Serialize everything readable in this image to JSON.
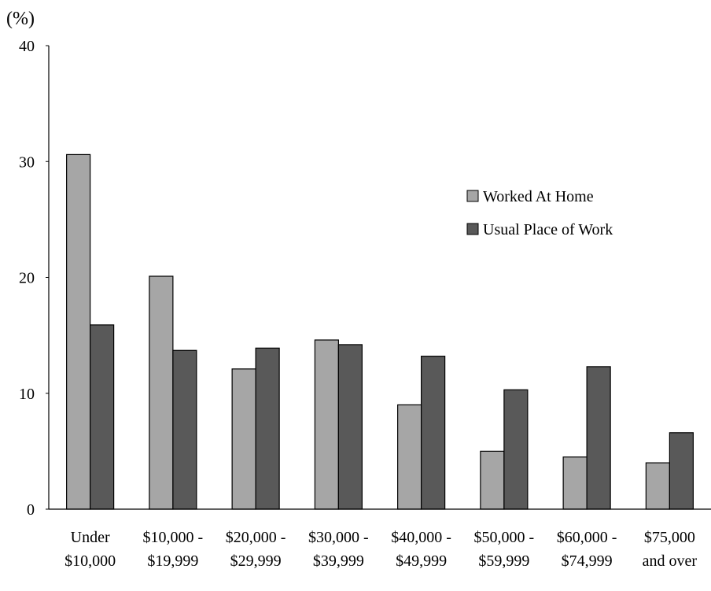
{
  "chart_data": {
    "type": "bar",
    "unit_label": "(%)",
    "ylim": [
      0,
      40
    ],
    "yticks": [
      "0",
      "10",
      "20",
      "30",
      "40"
    ],
    "categories": [
      [
        "Under",
        "$10,000"
      ],
      [
        "$10,000 -",
        "$19,999"
      ],
      [
        "$20,000 -",
        "$29,999"
      ],
      [
        "$30,000 -",
        "$39,999"
      ],
      [
        "$40,000 -",
        "$49,999"
      ],
      [
        "$50,000 -",
        "$59,999"
      ],
      [
        "$60,000 -",
        "$74,999"
      ],
      [
        "$75,000",
        "and over"
      ]
    ],
    "series": [
      {
        "name": "Worked At Home",
        "color": "#a6a6a6",
        "values": [
          30.6,
          20.1,
          12.1,
          14.6,
          9.0,
          5.0,
          4.5,
          4.0
        ]
      },
      {
        "name": "Usual Place of Work",
        "color": "#595959",
        "values": [
          15.9,
          13.7,
          13.9,
          14.2,
          13.2,
          10.3,
          12.3,
          6.6
        ]
      }
    ],
    "legend_position": "right",
    "grid": false
  }
}
